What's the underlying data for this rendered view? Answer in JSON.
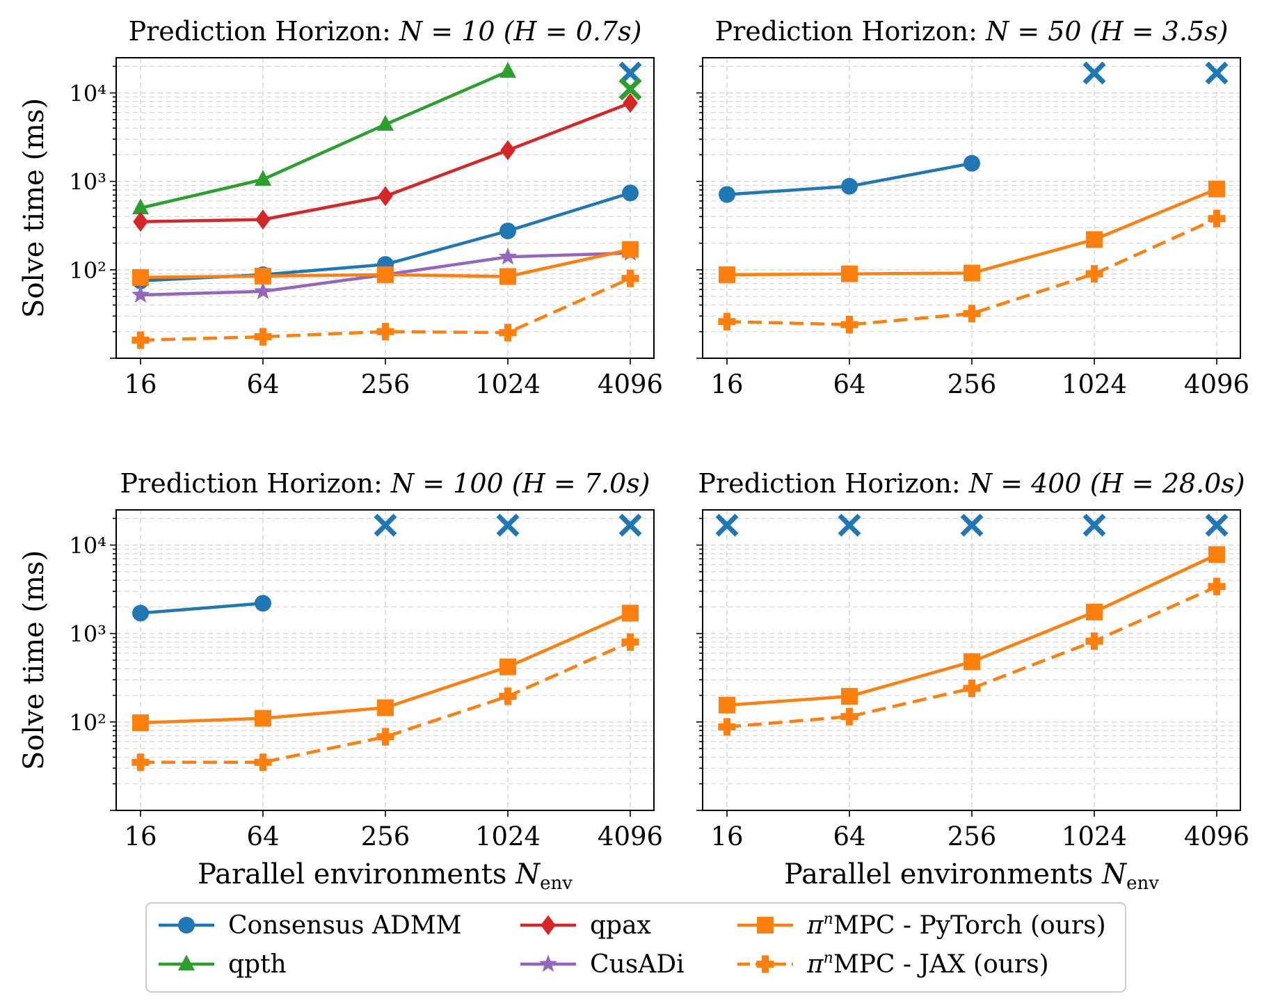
{
  "figure": {
    "ylabel": "Solve time (ms)",
    "xlabel_main": "Parallel environments ",
    "xlabel_italic": "N",
    "xlabel_sub": "env",
    "fail_marker": "×"
  },
  "colors": {
    "admm": "#1f77b4",
    "qpth": "#2ca02c",
    "qpax": "#d62728",
    "cusadi": "#9467bd",
    "pimpc": "#ff7f0e",
    "grid": "#d9d9d9",
    "axis": "#000000"
  },
  "legend": [
    {
      "key": "admm",
      "marker": "circle",
      "dash": false,
      "pre": "",
      "sup": "",
      "label": "Consensus ADMM"
    },
    {
      "key": "qpth",
      "marker": "triangle",
      "dash": false,
      "pre": "",
      "sup": "",
      "label": "qpth"
    },
    {
      "key": "qpax",
      "marker": "diamond",
      "dash": false,
      "pre": "",
      "sup": "",
      "label": "qpax"
    },
    {
      "key": "cusadi",
      "marker": "star",
      "dash": false,
      "pre": "",
      "sup": "",
      "label": "CusADi"
    },
    {
      "key": "pimpc_torch",
      "marker": "square",
      "dash": false,
      "pre": "π",
      "sup": "n",
      "label": "MPC - PyTorch (ours)"
    },
    {
      "key": "pimpc_jax",
      "marker": "plus",
      "dash": true,
      "pre": "π",
      "sup": "n",
      "label": "MPC - JAX (ours)"
    }
  ],
  "chart_data": [
    {
      "type": "line",
      "title_prefix": "Prediction Horizon: ",
      "title_n": "N = 10",
      "title_h": "(H = 0.7s)",
      "x": [
        16,
        64,
        256,
        1024,
        4096
      ],
      "xscale": "log2",
      "yscale": "log",
      "ylim": [
        10,
        25000
      ],
      "yticks": [
        "10²",
        "10³",
        "10⁴"
      ],
      "grid": true,
      "series": [
        {
          "name": "Consensus ADMM",
          "key": "admm",
          "values": [
            75,
            88,
            115,
            275,
            740
          ],
          "failed_x": [
            4096
          ]
        },
        {
          "name": "qpth",
          "key": "qpth",
          "values": [
            500,
            1050,
            4400,
            17500,
            null
          ],
          "failed_x": [
            4096
          ]
        },
        {
          "name": "qpax",
          "key": "qpax",
          "values": [
            350,
            370,
            680,
            2250,
            7700
          ],
          "failed_x": []
        },
        {
          "name": "CusADi",
          "key": "cusadi",
          "values": [
            52,
            57,
            88,
            140,
            155
          ],
          "failed_x": []
        },
        {
          "name": "πⁿMPC - PyTorch (ours)",
          "key": "pimpc_torch",
          "values": [
            82,
            85,
            88,
            84,
            170
          ],
          "failed_x": []
        },
        {
          "name": "πⁿMPC - JAX (ours)",
          "key": "pimpc_jax",
          "values": [
            16,
            17.5,
            20,
            19.5,
            80
          ],
          "failed_x": []
        }
      ]
    },
    {
      "type": "line",
      "title_prefix": "Prediction Horizon: ",
      "title_n": "N = 50",
      "title_h": "(H = 3.5s)",
      "x": [
        16,
        64,
        256,
        1024,
        4096
      ],
      "xscale": "log2",
      "yscale": "log",
      "ylim": [
        10,
        25000
      ],
      "yticks": [],
      "grid": true,
      "series": [
        {
          "name": "Consensus ADMM",
          "key": "admm",
          "values": [
            710,
            880,
            1600,
            null,
            null
          ],
          "failed_x": [
            1024,
            4096
          ]
        },
        {
          "name": "πⁿMPC - PyTorch (ours)",
          "key": "pimpc_torch",
          "values": [
            88,
            90,
            92,
            220,
            820
          ],
          "failed_x": []
        },
        {
          "name": "πⁿMPC - JAX (ours)",
          "key": "pimpc_jax",
          "values": [
            26,
            24,
            32,
            90,
            380
          ],
          "failed_x": []
        }
      ]
    },
    {
      "type": "line",
      "title_prefix": "Prediction Horizon: ",
      "title_n": "N = 100",
      "title_h": "(H = 7.0s)",
      "x": [
        16,
        64,
        256,
        1024,
        4096
      ],
      "xscale": "log2",
      "yscale": "log",
      "ylim": [
        10,
        25000
      ],
      "yticks": [
        "10²",
        "10³",
        "10⁴"
      ],
      "grid": true,
      "series": [
        {
          "name": "Consensus ADMM",
          "key": "admm",
          "values": [
            1700,
            2200,
            null,
            null,
            null
          ],
          "failed_x": [
            256,
            1024,
            4096
          ]
        },
        {
          "name": "πⁿMPC - PyTorch (ours)",
          "key": "pimpc_torch",
          "values": [
            98,
            110,
            145,
            420,
            1700
          ],
          "failed_x": []
        },
        {
          "name": "πⁿMPC - JAX (ours)",
          "key": "pimpc_jax",
          "values": [
            35,
            35,
            68,
            195,
            800
          ],
          "failed_x": []
        }
      ]
    },
    {
      "type": "line",
      "title_prefix": "Prediction Horizon: ",
      "title_n": "N = 400",
      "title_h": "(H = 28.0s)",
      "x": [
        16,
        64,
        256,
        1024,
        4096
      ],
      "xscale": "log2",
      "yscale": "log",
      "ylim": [
        10,
        25000
      ],
      "yticks": [],
      "grid": true,
      "series": [
        {
          "name": "Consensus ADMM",
          "key": "admm",
          "values": [
            null,
            null,
            null,
            null,
            null
          ],
          "failed_x": [
            16,
            64,
            256,
            1024,
            4096
          ]
        },
        {
          "name": "πⁿMPC - PyTorch (ours)",
          "key": "pimpc_torch",
          "values": [
            155,
            195,
            480,
            1750,
            7800
          ],
          "failed_x": []
        },
        {
          "name": "πⁿMPC - JAX (ours)",
          "key": "pimpc_jax",
          "values": [
            88,
            115,
            240,
            820,
            3400
          ],
          "failed_x": []
        }
      ]
    }
  ]
}
